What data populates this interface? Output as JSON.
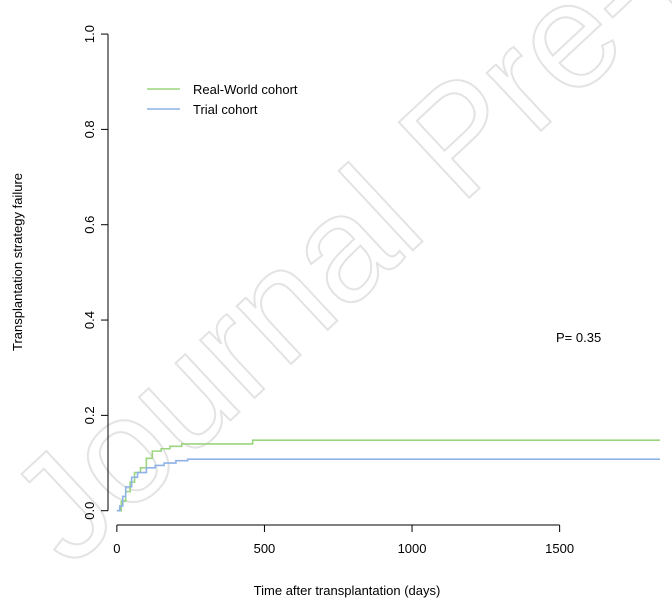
{
  "watermark": "Journal Pre-proof",
  "chart_data": {
    "type": "line",
    "xlabel": "Time after transplantation (days)",
    "ylabel": "Transplantation strategy failure",
    "xlim": [
      -30,
      1840
    ],
    "ylim": [
      -0.03,
      1.04
    ],
    "x_ticks": [
      0,
      500,
      1000,
      1500
    ],
    "y_ticks": [
      0.0,
      0.2,
      0.4,
      0.6,
      0.8,
      1.0
    ],
    "y_tick_labels": [
      "0.0",
      "0.2",
      "0.4",
      "0.6",
      "0.8",
      "1.0"
    ],
    "annotation": "P= 0.35",
    "legend_placement": "top-left",
    "series": [
      {
        "name": "Real-World cohort",
        "color": "#9bd57f",
        "x": [
          0,
          15,
          30,
          45,
          60,
          80,
          100,
          120,
          150,
          180,
          220,
          300,
          400,
          460,
          1840
        ],
        "y": [
          0.0,
          0.02,
          0.04,
          0.06,
          0.08,
          0.09,
          0.11,
          0.125,
          0.13,
          0.135,
          0.14,
          0.14,
          0.14,
          0.148,
          0.148
        ]
      },
      {
        "name": "Trial cohort",
        "color": "#8fb3e6",
        "x": [
          0,
          10,
          20,
          30,
          50,
          70,
          100,
          130,
          160,
          200,
          240,
          1840
        ],
        "y": [
          0.0,
          0.01,
          0.03,
          0.05,
          0.07,
          0.08,
          0.09,
          0.095,
          0.1,
          0.105,
          0.108,
          0.108
        ]
      }
    ]
  }
}
